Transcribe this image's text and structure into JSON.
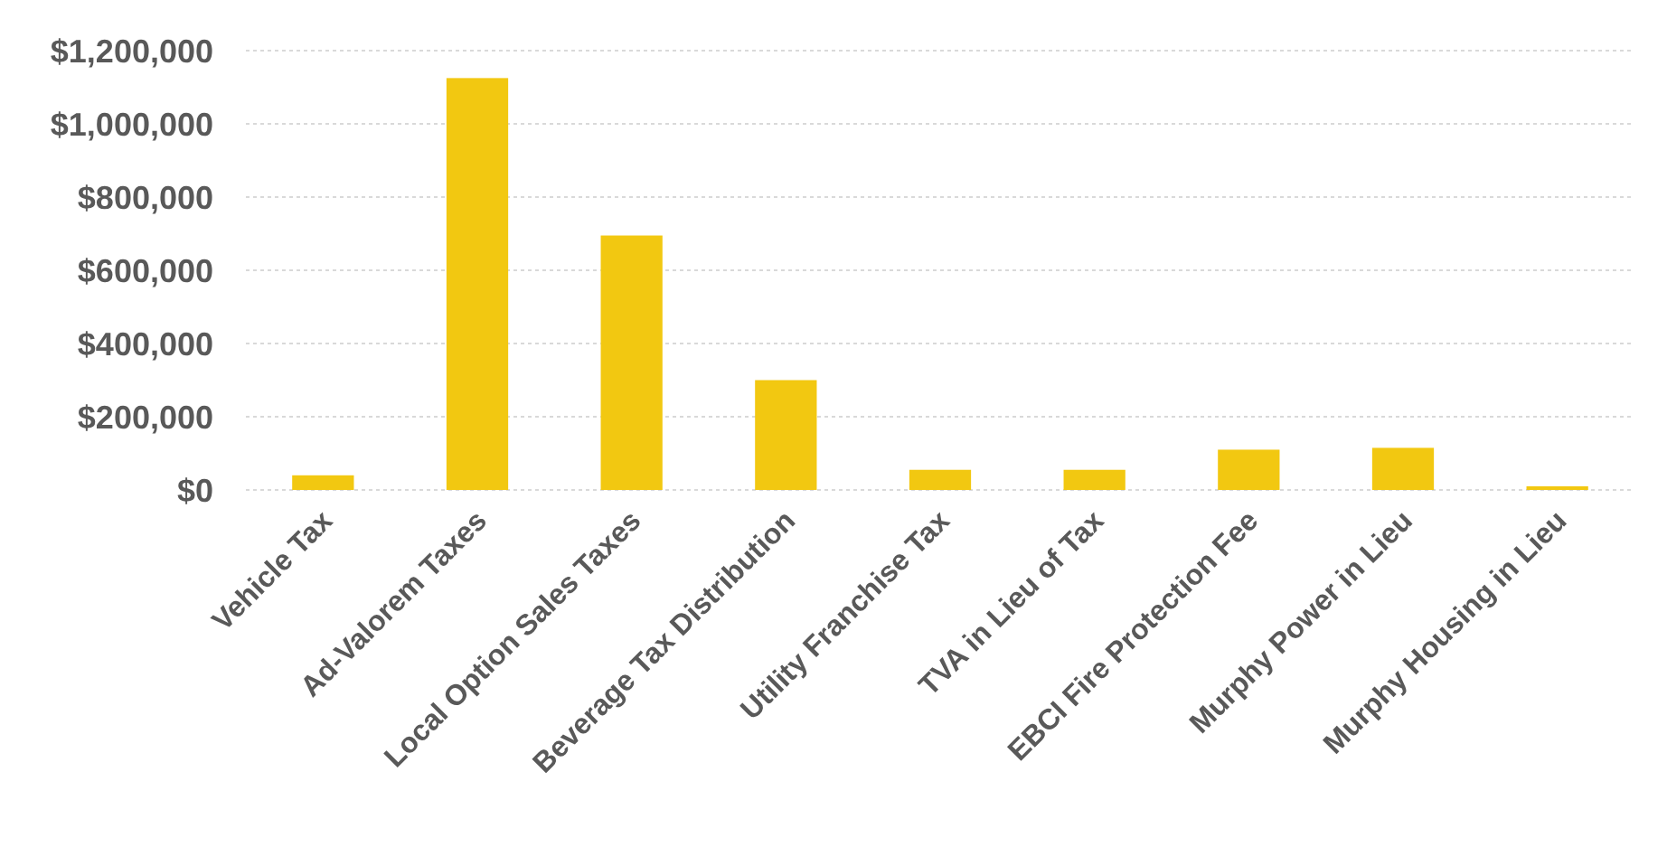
{
  "chart_data": {
    "type": "bar",
    "categories": [
      "Vehicle Tax",
      "Ad-Valorem Taxes",
      "Local Option Sales Taxes",
      "Beverage Tax Distribution",
      "Utility Franchise Tax",
      "TVA in Lieu of Tax",
      "EBCI Fire Protection Fee",
      "Murphy Power in Lieu",
      "Murphy Housing in Lieu"
    ],
    "values": [
      40000,
      1125000,
      695000,
      300000,
      55000,
      55000,
      110000,
      115000,
      10000
    ],
    "color": "#f2c811",
    "ylim": [
      0,
      1200000
    ],
    "yticks": [
      {
        "value": 0,
        "label": "$0"
      },
      {
        "value": 200000,
        "label": "$200,000"
      },
      {
        "value": 400000,
        "label": "$400,000"
      },
      {
        "value": 600000,
        "label": "$600,000"
      },
      {
        "value": 800000,
        "label": "$800,000"
      },
      {
        "value": 1000000,
        "label": "$1,000,000"
      },
      {
        "value": 1200000,
        "label": "$1,200,000"
      }
    ],
    "grid": "y"
  }
}
